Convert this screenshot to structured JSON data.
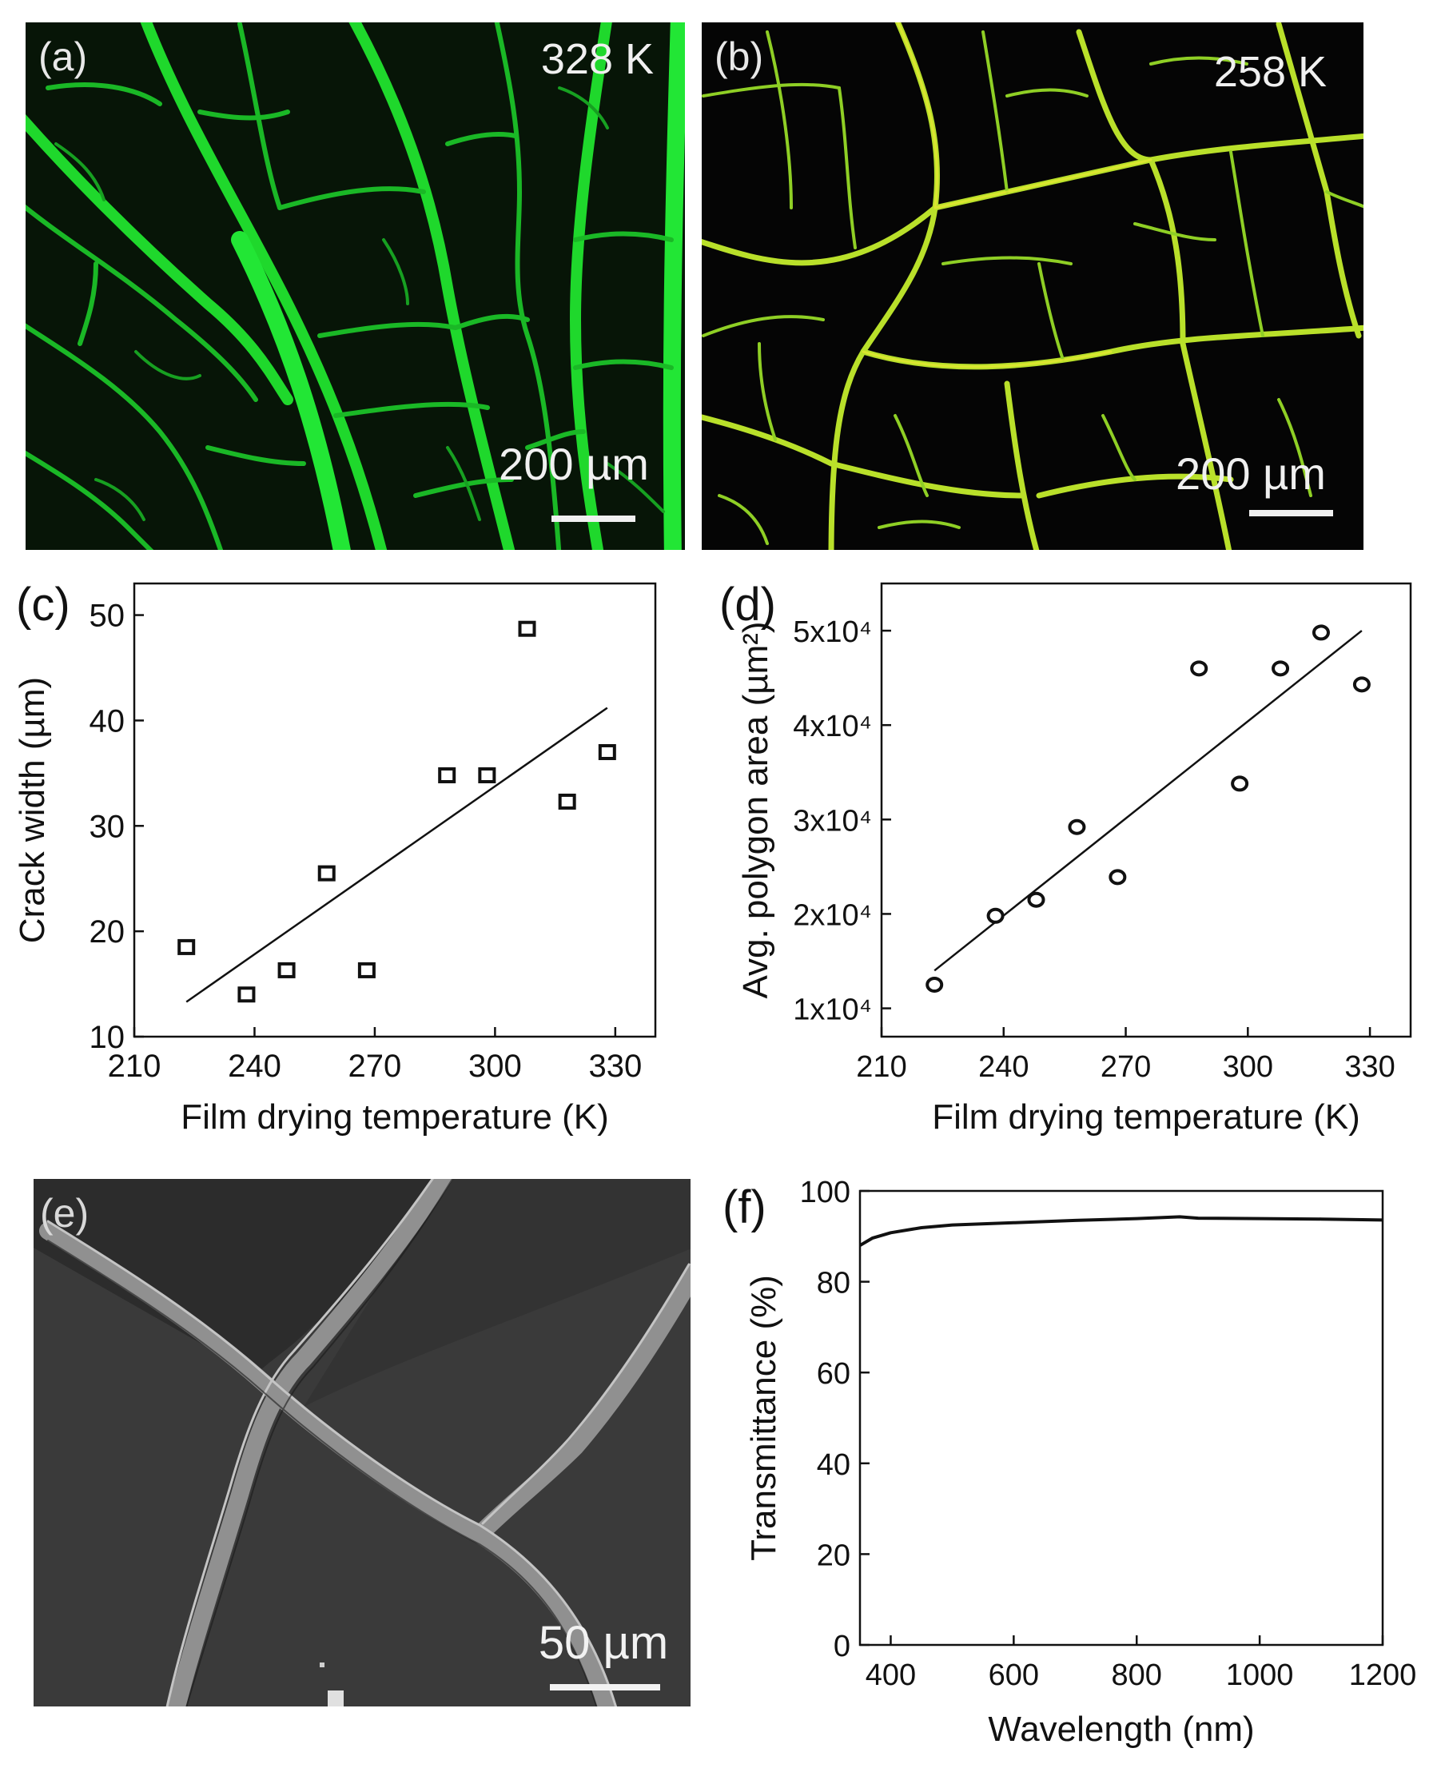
{
  "panels": {
    "a": {
      "label": "(a)",
      "temperature": "328 K",
      "scalebar": "200 µm"
    },
    "b": {
      "label": "(b)",
      "temperature": "258 K",
      "scalebar": "200 µm"
    },
    "c": {
      "label": "(c)"
    },
    "d": {
      "label": "(d)"
    },
    "e": {
      "label": "(e)",
      "scalebar": "50 µm"
    },
    "f": {
      "label": "(f)"
    }
  },
  "chart_data": [
    {
      "id": "c",
      "type": "scatter",
      "xlabel": "Film drying temperature (K)",
      "ylabel": "Crack width (µm)",
      "xlim": [
        210,
        340
      ],
      "ylim": [
        10,
        53
      ],
      "xticks": [
        210,
        240,
        270,
        300,
        330
      ],
      "yticks": [
        10,
        20,
        30,
        40,
        50
      ],
      "marker": "square",
      "x": [
        223,
        238,
        248,
        258,
        268,
        288,
        298,
        308,
        318,
        328
      ],
      "y": [
        18.5,
        14.0,
        16.3,
        25.5,
        16.3,
        34.8,
        34.8,
        48.7,
        32.3,
        37.0
      ],
      "fit_line": {
        "x": [
          223,
          328
        ],
        "y": [
          13.3,
          41.2
        ]
      }
    },
    {
      "id": "d",
      "type": "scatter",
      "xlabel": "Film drying temperature (K)",
      "ylabel": "Avg. polygon area (µm²)",
      "xlim": [
        210,
        340
      ],
      "ylim": [
        7000,
        55000
      ],
      "xticks": [
        210,
        240,
        270,
        300,
        330
      ],
      "yticks": [
        10000,
        20000,
        30000,
        40000,
        50000
      ],
      "yticklabels": [
        "1x10⁴",
        "2x10⁴",
        "3x10⁴",
        "4x10⁴",
        "5x10⁴"
      ],
      "marker": "circle",
      "x": [
        223,
        238,
        248,
        258,
        268,
        288,
        298,
        308,
        318,
        328
      ],
      "y": [
        12500,
        19800,
        21500,
        29200,
        23900,
        46000,
        33800,
        46000,
        49800,
        44300
      ],
      "fit_line": {
        "x": [
          223,
          328
        ],
        "y": [
          14000,
          50000
        ]
      }
    },
    {
      "id": "f",
      "type": "line",
      "xlabel": "Wavelength (nm)",
      "ylabel": "Transmittance (%)",
      "xlim": [
        350,
        1200
      ],
      "ylim": [
        0,
        100
      ],
      "xticks": [
        400,
        600,
        800,
        1000,
        1200
      ],
      "yticks": [
        0,
        20,
        40,
        60,
        80,
        100
      ],
      "series": [
        {
          "x": [
            350,
            370,
            400,
            450,
            500,
            600,
            700,
            800,
            870,
            900,
            1000,
            1100,
            1200
          ],
          "y": [
            88.0,
            89.6,
            90.8,
            91.9,
            92.5,
            93.0,
            93.5,
            93.9,
            94.3,
            94.0,
            93.9,
            93.8,
            93.6
          ]
        }
      ]
    }
  ]
}
